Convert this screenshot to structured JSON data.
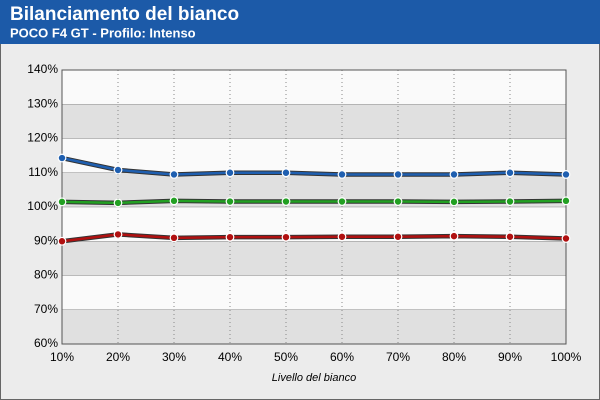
{
  "chart_data": {
    "type": "line",
    "title": "Bilanciamento del bianco",
    "subtitle": "POCO F4 GT - Profilo: Intenso",
    "x_label": "Livello del bianco",
    "categories": [
      "10%",
      "20%",
      "30%",
      "40%",
      "50%",
      "60%",
      "70%",
      "80%",
      "90%",
      "100%"
    ],
    "series": [
      {
        "color": "#1f5fb0",
        "values": [
          114.3,
          110.8,
          109.5,
          110,
          110,
          109.5,
          109.5,
          109.5,
          110,
          109.5
        ]
      },
      {
        "color": "#22a022",
        "values": [
          101.5,
          101.2,
          101.8,
          101.6,
          101.6,
          101.6,
          101.6,
          101.5,
          101.6,
          101.8
        ]
      },
      {
        "color": "#b01010",
        "values": [
          90,
          92,
          91,
          91.2,
          91.2,
          91.3,
          91.3,
          91.5,
          91.3,
          90.8
        ]
      }
    ],
    "ylim": [
      60,
      140
    ],
    "yticks": [
      {
        "value": 60,
        "label": "60%"
      },
      {
        "value": 70,
        "label": "70%"
      },
      {
        "value": 80,
        "label": "80%"
      },
      {
        "value": 90,
        "label": "90%"
      },
      {
        "value": 100,
        "label": "100%"
      },
      {
        "value": 110,
        "label": "110%"
      },
      {
        "value": 120,
        "label": "120%"
      },
      {
        "value": 130,
        "label": "130%"
      },
      {
        "value": 140,
        "label": "140%"
      }
    ],
    "grid": true
  }
}
